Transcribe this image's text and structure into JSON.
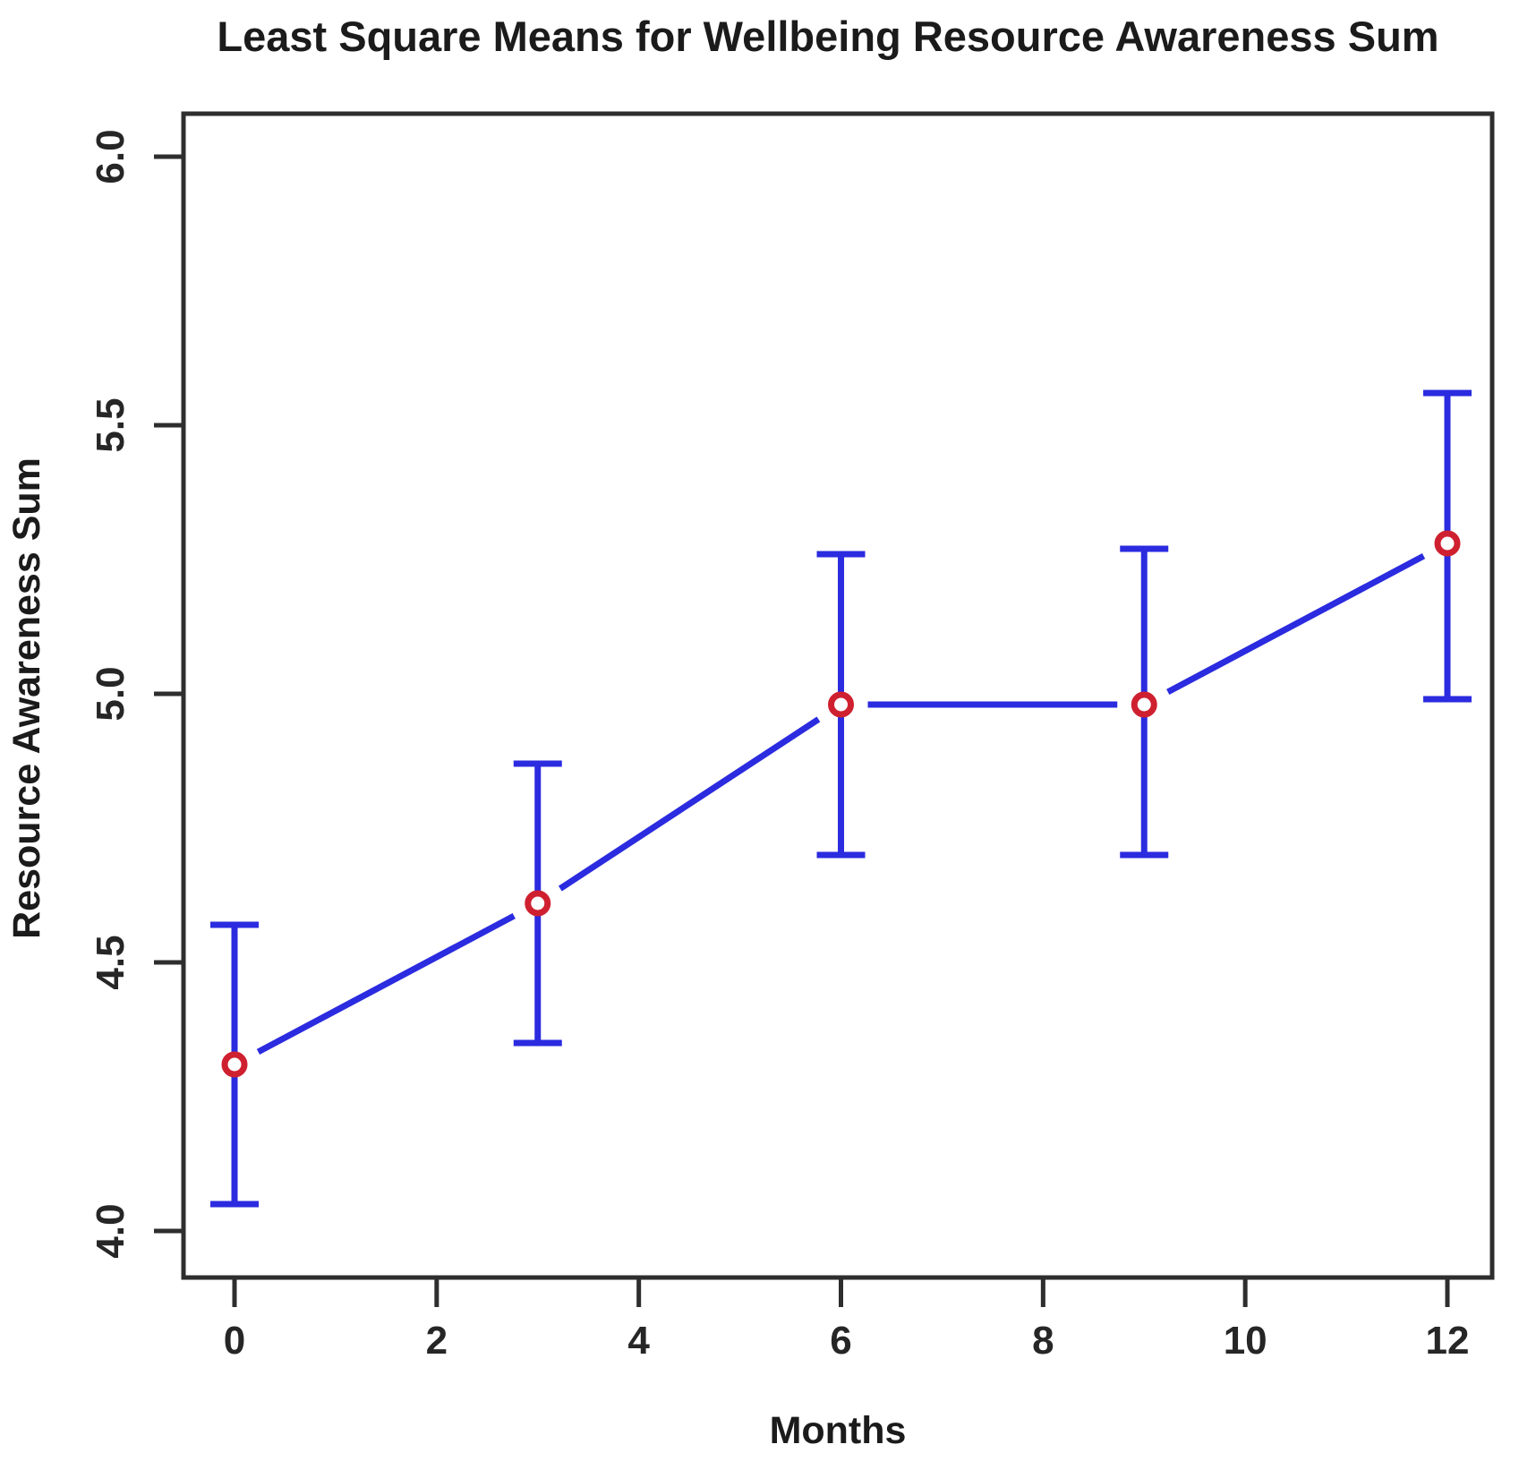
{
  "chart_data": {
    "type": "line",
    "title": "Least Square Means for Wellbeing Resource Awareness Sum",
    "xlabel": "Months",
    "ylabel": "Resource Awareness Sum",
    "x": [
      0,
      3,
      6,
      9,
      12
    ],
    "series": [
      {
        "name": "Least Square Mean",
        "values": [
          4.31,
          4.61,
          4.98,
          4.98,
          5.28
        ],
        "ci_lower": [
          4.05,
          4.35,
          4.7,
          4.7,
          4.99
        ],
        "ci_upper": [
          4.57,
          4.87,
          5.26,
          5.27,
          5.56
        ]
      }
    ],
    "x_ticks": [
      "0",
      "2",
      "4",
      "6",
      "8",
      "10",
      "12"
    ],
    "y_ticks": [
      "4.0",
      "4.5",
      "5.0",
      "5.5",
      "6.0"
    ],
    "xlim": [
      -0.5,
      12.45
    ],
    "ylim": [
      3.92,
      6.08
    ],
    "grid": false,
    "legend_position": "none",
    "marker": "open-circle",
    "line_color": "#2b2be0",
    "marker_color": "#cf2030",
    "marker_fill": "#ffffff",
    "axis_color": "#2e2e2e",
    "text_color": "#1b1b1b"
  }
}
